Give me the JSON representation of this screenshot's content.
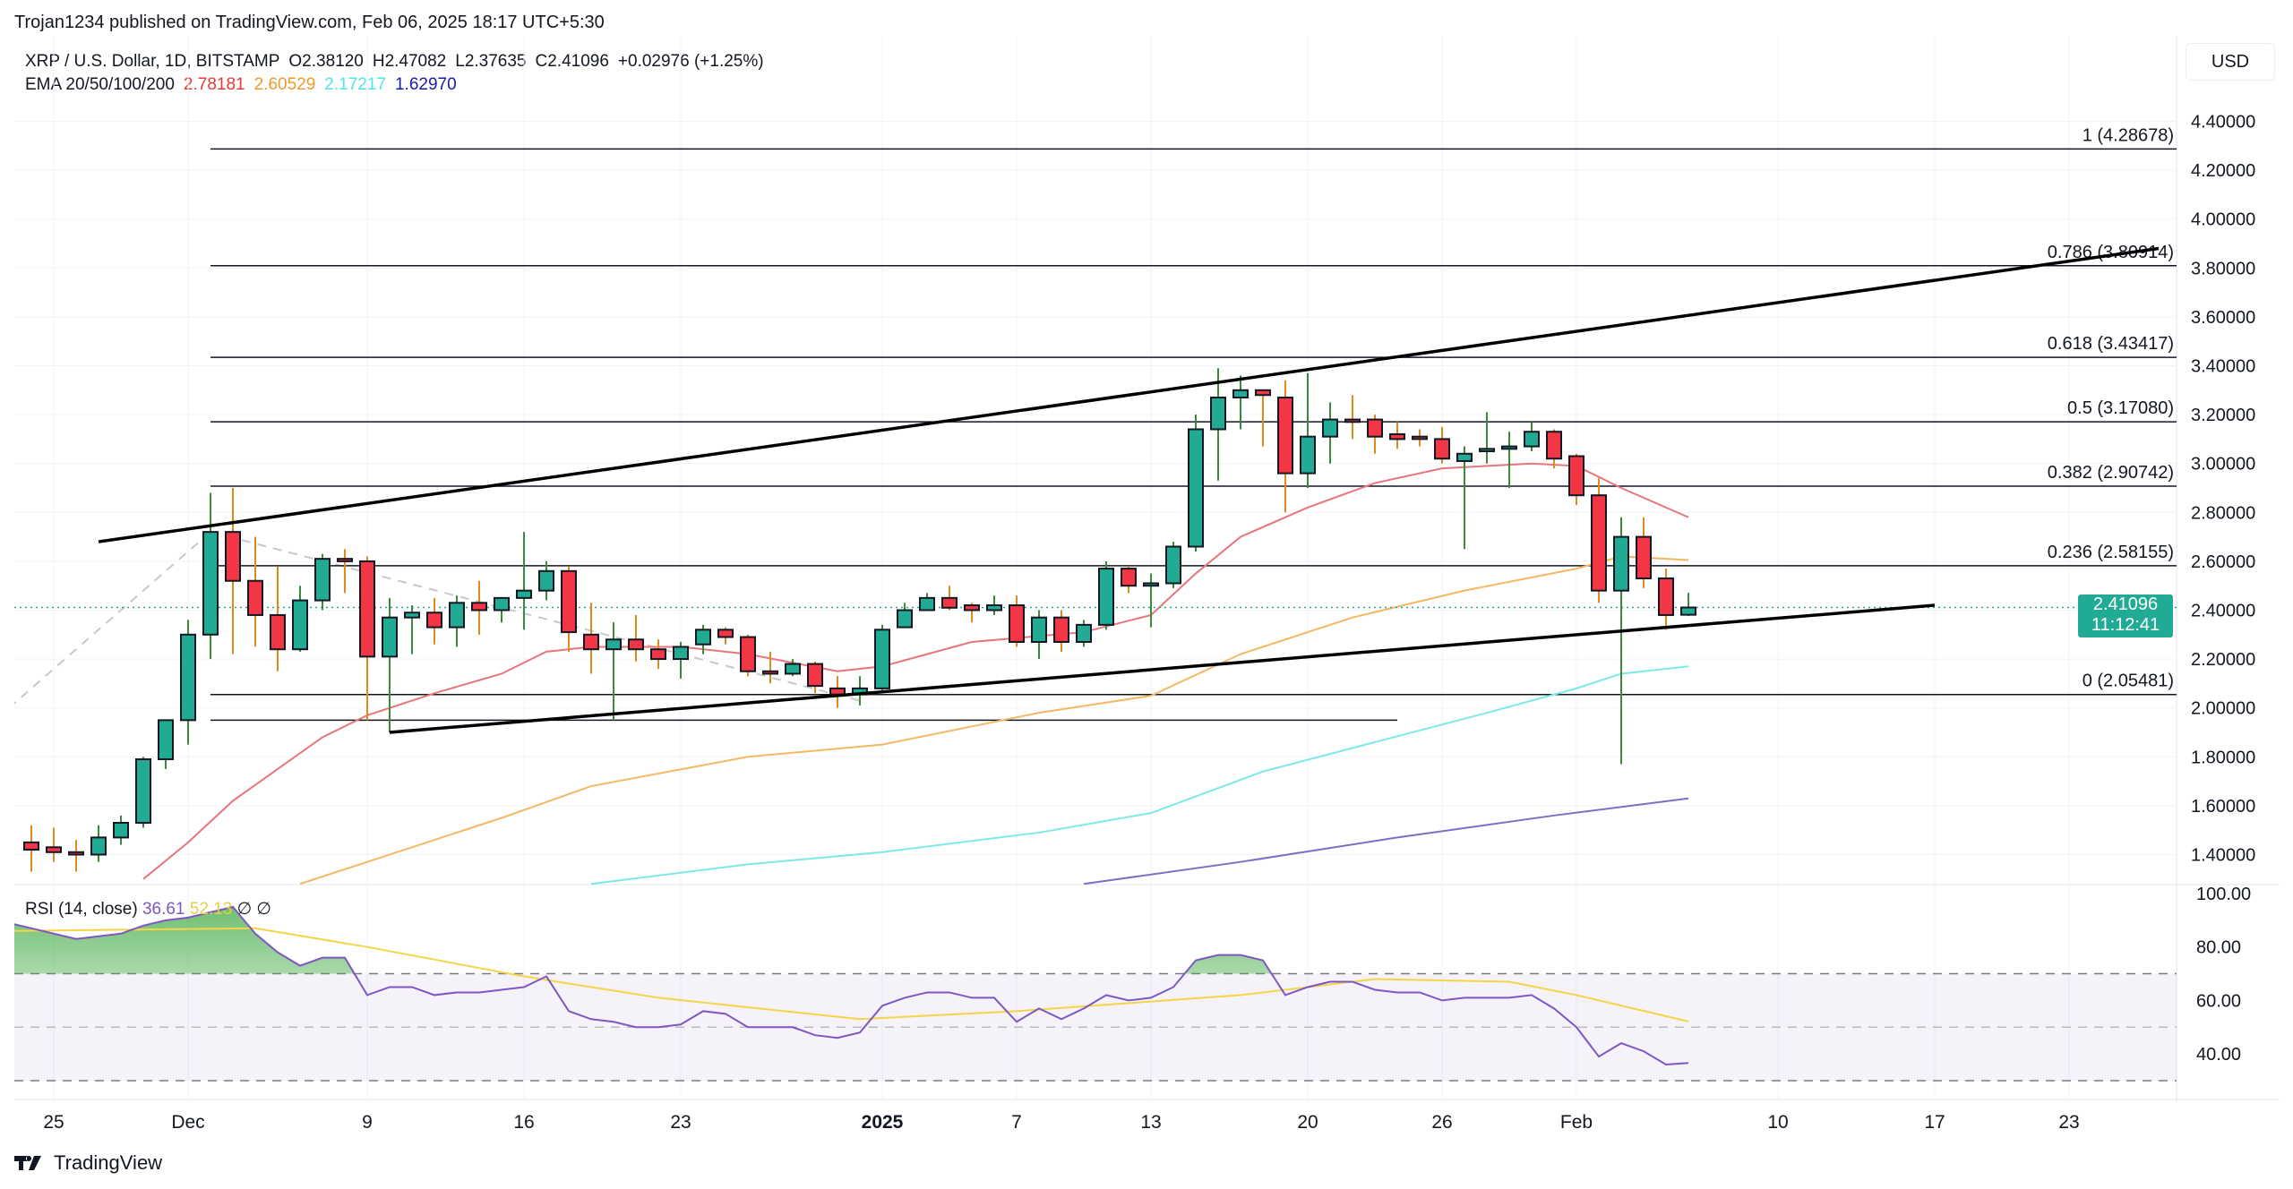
{
  "header": {
    "published": "Trojan1234 published on TradingView.com, Feb 06, 2025 18:17 UTC+5:30"
  },
  "legend": {
    "symbol": "XRP / U.S. Dollar, 1D, BITSTAMP",
    "open": "O2.38120",
    "high": "H2.47082",
    "low": "L2.37635",
    "close": "C2.41096",
    "change": "+0.02976 (+1.25%)",
    "ema_label": "EMA 20/50/100/200",
    "ema_values": [
      "2.78181",
      "2.60529",
      "2.17217",
      "1.62970"
    ]
  },
  "axis": {
    "currency": "USD",
    "price_tag": "2.41096",
    "countdown": "11:12:41"
  },
  "rsi": {
    "label": "RSI (14, close)",
    "value": "36.61",
    "ma_value": "52.13",
    "extra": "∅ ∅"
  },
  "footer": {
    "logo": "TradingView"
  },
  "colors": {
    "up": "#22ab94",
    "down": "#f23645",
    "ema20": "#e8747c",
    "ema50": "#f5b862",
    "ema100": "#7ce8e8",
    "ema200": "#7e6fc4",
    "rsi": "#7e57c2",
    "rsi_ma": "#f5d547",
    "price_tag": "#22ab94"
  },
  "chart_data": {
    "type": "candlestick",
    "symbol": "XRP/USD",
    "interval": "1D",
    "ylim": [
      1.28,
      4.5
    ],
    "yticks": [
      "4.40000",
      "4.20000",
      "4.00000",
      "3.80000",
      "3.60000",
      "3.40000",
      "3.20000",
      "3.00000",
      "2.80000",
      "2.60000",
      "2.40000",
      "2.20000",
      "2.00000",
      "1.80000",
      "1.60000",
      "1.40000"
    ],
    "xticks": [
      [
        "2024-11-25",
        "25"
      ],
      [
        "2024-12-01",
        "Dec"
      ],
      [
        "2024-12-09",
        "9"
      ],
      [
        "2024-12-16",
        "16"
      ],
      [
        "2024-12-23",
        "23"
      ],
      [
        "2025-01-01",
        "2025"
      ],
      [
        "2025-01-07",
        "7"
      ],
      [
        "2025-01-13",
        "13"
      ],
      [
        "2025-01-20",
        "20"
      ],
      [
        "2025-01-26",
        "26"
      ],
      [
        "2025-02-01",
        "Feb"
      ],
      [
        "2025-02-10",
        "10"
      ],
      [
        "2025-02-17",
        "17"
      ],
      [
        "2025-02-23",
        "23"
      ]
    ],
    "candles": [
      [
        "2024-11-24",
        1.45,
        1.52,
        1.33,
        1.42
      ],
      [
        "2024-11-25",
        1.43,
        1.51,
        1.37,
        1.41
      ],
      [
        "2024-11-26",
        1.41,
        1.46,
        1.33,
        1.4
      ],
      [
        "2024-11-27",
        1.4,
        1.52,
        1.37,
        1.47
      ],
      [
        "2024-11-28",
        1.47,
        1.56,
        1.44,
        1.53
      ],
      [
        "2024-11-29",
        1.53,
        1.8,
        1.51,
        1.79
      ],
      [
        "2024-11-30",
        1.79,
        1.95,
        1.75,
        1.95
      ],
      [
        "2024-12-01",
        1.95,
        2.36,
        1.85,
        2.3
      ],
      [
        "2024-12-02",
        2.3,
        2.88,
        2.2,
        2.72
      ],
      [
        "2024-12-03",
        2.72,
        2.9,
        2.22,
        2.52
      ],
      [
        "2024-12-04",
        2.52,
        2.7,
        2.25,
        2.38
      ],
      [
        "2024-12-05",
        2.38,
        2.58,
        2.15,
        2.24
      ],
      [
        "2024-12-06",
        2.24,
        2.5,
        2.23,
        2.44
      ],
      [
        "2024-12-07",
        2.44,
        2.63,
        2.4,
        2.61
      ],
      [
        "2024-12-08",
        2.61,
        2.65,
        2.47,
        2.6
      ],
      [
        "2024-12-09",
        2.6,
        2.62,
        1.95,
        2.21
      ],
      [
        "2024-12-10",
        2.21,
        2.45,
        1.9,
        2.37
      ],
      [
        "2024-12-11",
        2.37,
        2.42,
        2.22,
        2.39
      ],
      [
        "2024-12-12",
        2.39,
        2.45,
        2.26,
        2.33
      ],
      [
        "2024-12-13",
        2.33,
        2.46,
        2.25,
        2.43
      ],
      [
        "2024-12-14",
        2.43,
        2.52,
        2.3,
        2.4
      ],
      [
        "2024-12-15",
        2.4,
        2.45,
        2.35,
        2.45
      ],
      [
        "2024-12-16",
        2.45,
        2.72,
        2.32,
        2.48
      ],
      [
        "2024-12-17",
        2.48,
        2.6,
        2.44,
        2.56
      ],
      [
        "2024-12-18",
        2.56,
        2.58,
        2.23,
        2.31
      ],
      [
        "2024-12-19",
        2.3,
        2.43,
        2.14,
        2.24
      ],
      [
        "2024-12-20",
        2.24,
        2.35,
        1.95,
        2.28
      ],
      [
        "2024-12-21",
        2.28,
        2.38,
        2.19,
        2.24
      ],
      [
        "2024-12-22",
        2.24,
        2.28,
        2.16,
        2.2
      ],
      [
        "2024-12-23",
        2.2,
        2.27,
        2.12,
        2.25
      ],
      [
        "2024-12-24",
        2.26,
        2.34,
        2.22,
        2.32
      ],
      [
        "2024-12-25",
        2.32,
        2.33,
        2.26,
        2.29
      ],
      [
        "2024-12-26",
        2.29,
        2.3,
        2.13,
        2.15
      ],
      [
        "2024-12-27",
        2.15,
        2.23,
        2.1,
        2.14
      ],
      [
        "2024-12-28",
        2.14,
        2.2,
        2.13,
        2.18
      ],
      [
        "2024-12-29",
        2.18,
        2.19,
        2.06,
        2.09
      ],
      [
        "2024-12-30",
        2.08,
        2.13,
        2.0,
        2.055
      ],
      [
        "2024-12-31",
        2.055,
        2.13,
        2.01,
        2.08
      ],
      [
        "2025-01-01",
        2.08,
        2.34,
        2.07,
        2.32
      ],
      [
        "2025-01-02",
        2.33,
        2.43,
        2.33,
        2.4
      ],
      [
        "2025-01-03",
        2.4,
        2.47,
        2.4,
        2.45
      ],
      [
        "2025-01-04",
        2.45,
        2.5,
        2.4,
        2.41
      ],
      [
        "2025-01-05",
        2.42,
        2.43,
        2.35,
        2.4
      ],
      [
        "2025-01-06",
        2.4,
        2.46,
        2.38,
        2.42
      ],
      [
        "2025-01-07",
        2.42,
        2.46,
        2.25,
        2.27
      ],
      [
        "2025-01-08",
        2.27,
        2.4,
        2.2,
        2.37
      ],
      [
        "2025-01-09",
        2.37,
        2.4,
        2.23,
        2.27
      ],
      [
        "2025-01-10",
        2.27,
        2.36,
        2.25,
        2.34
      ],
      [
        "2025-01-11",
        2.34,
        2.6,
        2.32,
        2.57
      ],
      [
        "2025-01-12",
        2.57,
        2.58,
        2.47,
        2.5
      ],
      [
        "2025-01-13",
        2.5,
        2.55,
        2.33,
        2.51
      ],
      [
        "2025-01-14",
        2.51,
        2.68,
        2.49,
        2.66
      ],
      [
        "2025-01-15",
        2.66,
        3.2,
        2.64,
        3.14
      ],
      [
        "2025-01-16",
        3.14,
        3.39,
        2.93,
        3.27
      ],
      [
        "2025-01-17",
        3.27,
        3.36,
        3.14,
        3.3
      ],
      [
        "2025-01-18",
        3.3,
        3.3,
        3.07,
        3.28
      ],
      [
        "2025-01-19",
        3.27,
        3.34,
        2.8,
        2.96
      ],
      [
        "2025-01-20",
        2.96,
        3.37,
        2.9,
        3.11
      ],
      [
        "2025-01-21",
        3.11,
        3.25,
        3.0,
        3.18
      ],
      [
        "2025-01-22",
        3.18,
        3.28,
        3.1,
        3.17
      ],
      [
        "2025-01-23",
        3.18,
        3.2,
        3.04,
        3.11
      ],
      [
        "2025-01-24",
        3.12,
        3.17,
        3.06,
        3.1
      ],
      [
        "2025-01-25",
        3.11,
        3.14,
        3.07,
        3.1
      ],
      [
        "2025-01-26",
        3.1,
        3.15,
        3.0,
        3.02
      ],
      [
        "2025-01-27",
        3.01,
        3.07,
        2.65,
        3.04
      ],
      [
        "2025-01-28",
        3.05,
        3.21,
        3.0,
        3.06
      ],
      [
        "2025-01-29",
        3.06,
        3.13,
        2.9,
        3.07
      ],
      [
        "2025-01-30",
        3.07,
        3.17,
        3.05,
        3.13
      ],
      [
        "2025-01-31",
        3.13,
        3.14,
        2.98,
        3.02
      ],
      [
        "2025-02-01",
        3.03,
        3.04,
        2.83,
        2.87
      ],
      [
        "2025-02-02",
        2.87,
        2.94,
        2.43,
        2.48
      ],
      [
        "2025-02-03",
        2.48,
        2.78,
        1.77,
        2.7
      ],
      [
        "2025-02-04",
        2.7,
        2.78,
        2.49,
        2.53
      ],
      [
        "2025-02-05",
        2.53,
        2.57,
        2.32,
        2.38
      ],
      [
        "2025-02-06",
        2.3812,
        2.47082,
        2.37635,
        2.41096
      ]
    ],
    "ema": [
      {
        "name": "EMA 20",
        "color": "#e8747c",
        "points": [
          [
            "2024-11-29",
            1.3
          ],
          [
            "2024-12-01",
            1.45
          ],
          [
            "2024-12-03",
            1.62
          ],
          [
            "2024-12-05",
            1.75
          ],
          [
            "2024-12-07",
            1.88
          ],
          [
            "2024-12-09",
            1.97
          ],
          [
            "2024-12-12",
            2.06
          ],
          [
            "2024-12-15",
            2.14
          ],
          [
            "2024-12-17",
            2.23
          ],
          [
            "2024-12-19",
            2.25
          ],
          [
            "2024-12-23",
            2.25
          ],
          [
            "2024-12-26",
            2.22
          ],
          [
            "2024-12-30",
            2.15
          ],
          [
            "2025-01-01",
            2.17
          ],
          [
            "2025-01-05",
            2.27
          ],
          [
            "2025-01-10",
            2.31
          ],
          [
            "2025-01-13",
            2.38
          ],
          [
            "2025-01-15",
            2.55
          ],
          [
            "2025-01-17",
            2.7
          ],
          [
            "2025-01-20",
            2.82
          ],
          [
            "2025-01-23",
            2.92
          ],
          [
            "2025-01-26",
            2.98
          ],
          [
            "2025-01-30",
            3.0
          ],
          [
            "2025-02-01",
            2.99
          ],
          [
            "2025-02-03",
            2.9
          ],
          [
            "2025-02-06",
            2.78
          ]
        ]
      },
      {
        "name": "EMA 50",
        "color": "#f5b862",
        "points": [
          [
            "2024-12-06",
            1.28
          ],
          [
            "2024-12-09",
            1.37
          ],
          [
            "2024-12-15",
            1.55
          ],
          [
            "2024-12-19",
            1.68
          ],
          [
            "2024-12-26",
            1.8
          ],
          [
            "2025-01-01",
            1.85
          ],
          [
            "2025-01-08",
            1.98
          ],
          [
            "2025-01-13",
            2.05
          ],
          [
            "2025-01-17",
            2.22
          ],
          [
            "2025-01-22",
            2.37
          ],
          [
            "2025-01-27",
            2.48
          ],
          [
            "2025-02-01",
            2.57
          ],
          [
            "2025-02-03",
            2.62
          ],
          [
            "2025-02-06",
            2.605
          ]
        ]
      },
      {
        "name": "EMA 100",
        "color": "#7ce8e8",
        "points": [
          [
            "2024-12-19",
            1.28
          ],
          [
            "2024-12-26",
            1.36
          ],
          [
            "2025-01-01",
            1.41
          ],
          [
            "2025-01-08",
            1.49
          ],
          [
            "2025-01-13",
            1.57
          ],
          [
            "2025-01-18",
            1.74
          ],
          [
            "2025-01-23",
            1.86
          ],
          [
            "2025-01-28",
            1.98
          ],
          [
            "2025-02-01",
            2.08
          ],
          [
            "2025-02-03",
            2.14
          ],
          [
            "2025-02-06",
            2.17
          ]
        ]
      },
      {
        "name": "EMA 200",
        "color": "#7e6fc4",
        "points": [
          [
            "2025-01-10",
            1.28
          ],
          [
            "2025-01-17",
            1.37
          ],
          [
            "2025-01-24",
            1.47
          ],
          [
            "2025-01-31",
            1.56
          ],
          [
            "2025-02-06",
            1.63
          ]
        ]
      }
    ],
    "fib": {
      "from": "2024-12-02",
      "to": "2025-02-28",
      "levels": [
        [
          "1",
          "4.28678",
          4.28678
        ],
        [
          "0.786",
          "3.80914",
          3.80914
        ],
        [
          "0.618",
          "3.43417",
          3.43417
        ],
        [
          "0.5",
          "3.17080",
          3.1708
        ],
        [
          "0.382",
          "2.90742",
          2.90742
        ],
        [
          "0.236",
          "2.58155",
          2.58155
        ],
        [
          "0",
          "2.05481",
          2.05481
        ]
      ]
    },
    "trendlines": [
      [
        [
          "2024-11-27",
          2.68
        ],
        [
          "2025-02-27",
          3.88
        ]
      ],
      [
        [
          "2024-12-10",
          1.9
        ],
        [
          "2025-02-17",
          2.42
        ]
      ]
    ],
    "hlines": [
      [
        [
          "2024-12-02",
          1.95
        ],
        [
          "2025-01-24",
          1.95
        ]
      ]
    ],
    "dashed": [
      [
        [
          "2024-11-23",
          2.0
        ],
        [
          "2024-12-02",
          2.72
        ]
      ],
      [
        [
          "2024-12-02",
          2.72
        ],
        [
          "2024-12-31",
          2.03
        ]
      ]
    ],
    "last_price": 2.41096,
    "rsi_panel": {
      "yticks": [
        "100.00",
        "80.00",
        "60.00",
        "40.00"
      ],
      "bands": [
        70,
        50,
        30
      ],
      "start": "2024-11-23",
      "values": [
        89,
        87,
        85,
        83,
        84,
        85,
        88,
        90,
        91,
        93,
        95,
        85,
        78,
        73,
        76,
        76,
        62,
        65,
        65,
        62,
        63,
        63,
        64,
        65,
        69,
        56,
        53,
        52,
        50,
        50,
        51,
        56,
        55,
        50,
        50,
        50,
        47,
        46,
        48,
        58,
        61,
        63,
        63,
        61,
        61,
        52,
        57,
        53,
        57,
        62,
        60,
        61,
        65,
        75,
        77,
        77,
        75,
        62,
        65,
        67,
        67,
        64,
        63,
        63,
        60,
        61,
        61,
        61,
        62,
        57,
        50,
        39,
        44,
        41,
        36,
        36.61
      ],
      "ma": [
        [
          "2024-11-23",
          86
        ],
        [
          "2024-12-04",
          87
        ],
        [
          "2024-12-09",
          80
        ],
        [
          "2024-12-16",
          69
        ],
        [
          "2024-12-22",
          61
        ],
        [
          "2024-12-31",
          53
        ],
        [
          "2025-01-07",
          56
        ],
        [
          "2025-01-17",
          62
        ],
        [
          "2025-01-23",
          68
        ],
        [
          "2025-01-29",
          67
        ],
        [
          "2025-02-01",
          62
        ],
        [
          "2025-02-06",
          52.13
        ]
      ]
    }
  }
}
